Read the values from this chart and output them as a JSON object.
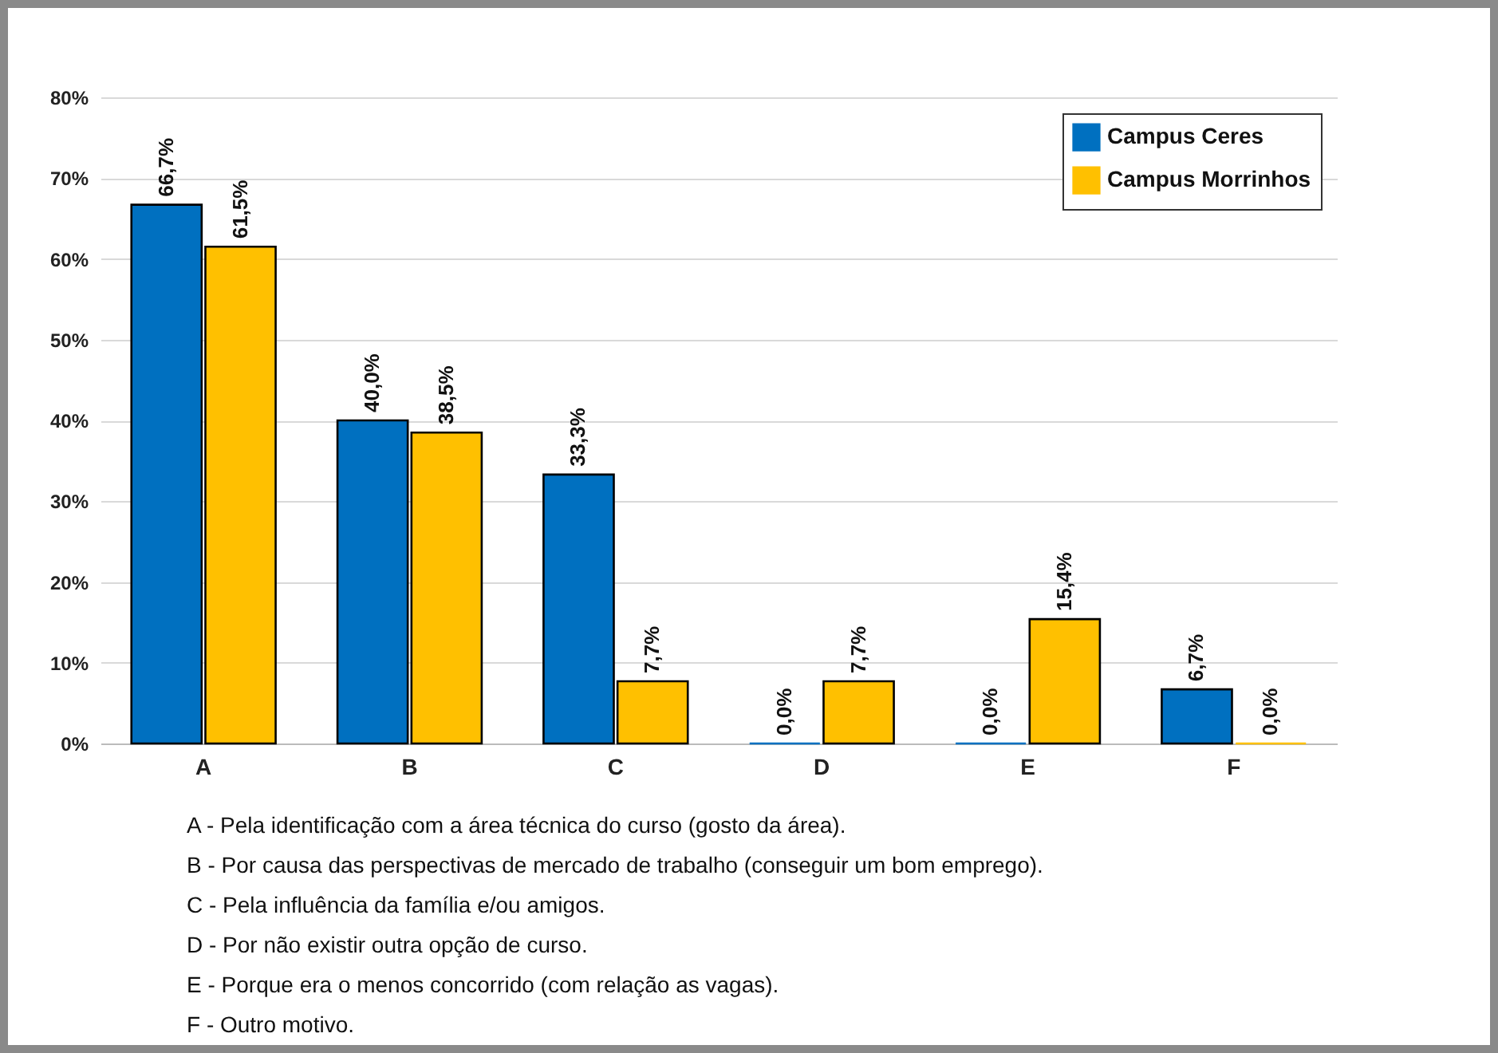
{
  "chart_data": {
    "type": "bar",
    "categories": [
      "A",
      "B",
      "C",
      "D",
      "E",
      "F"
    ],
    "series": [
      {
        "name": "Campus Ceres",
        "color": "#0070c0",
        "values": [
          66.7,
          40.0,
          33.3,
          0,
          0,
          6.7
        ],
        "value_labels": [
          "66,7%",
          "40,0%",
          "33,3%",
          "0,0%",
          "0,0%",
          "6,7%"
        ]
      },
      {
        "name": "Campus Morrinhos",
        "color": "#ffc000",
        "values": [
          61.5,
          38.5,
          7.7,
          7.7,
          15.4,
          0
        ],
        "value_labels": [
          "61,5%",
          "38,5%",
          "7,7%",
          "7,7%",
          "15,4%",
          "0,0%"
        ]
      }
    ],
    "ylim": [
      0,
      80
    ],
    "yticks": [
      {
        "value": 0,
        "label": "0%"
      },
      {
        "value": 10,
        "label": "10%"
      },
      {
        "value": 20,
        "label": "20%"
      },
      {
        "value": 30,
        "label": "30%"
      },
      {
        "value": 40,
        "label": "40%"
      },
      {
        "value": 50,
        "label": "50%"
      },
      {
        "value": 60,
        "label": "60%"
      },
      {
        "value": 70,
        "label": "70%"
      },
      {
        "value": 80,
        "label": "80%"
      }
    ],
    "grid": "y",
    "legend": "top right",
    "annotations": [
      "A - Pela identificação com a área técnica do curso (gosto da área).",
      "B - Por causa das perspectivas de mercado de trabalho (conseguir um bom emprego).",
      "C - Pela influência da família e/ou amigos.",
      "D - Por não existir outra opção de curso.",
      "E - Porque era o menos concorrido (com relação as vagas).",
      "F - Outro motivo."
    ]
  }
}
